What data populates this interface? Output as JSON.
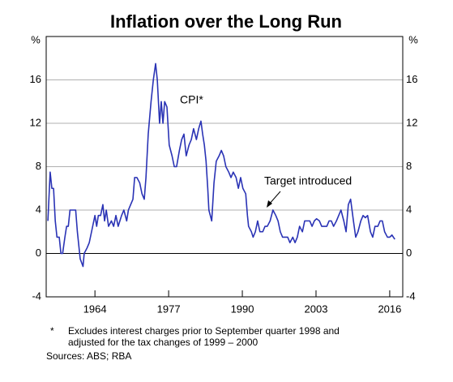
{
  "chart_data": {
    "type": "line",
    "title": "Inflation over the Long Run",
    "y_label": "%",
    "x": [
      1955.7,
      1956.1,
      1956.4,
      1956.7,
      1957.0,
      1957.3,
      1957.7,
      1958.0,
      1958.3,
      1958.7,
      1959.0,
      1959.3,
      1959.6,
      1960.1,
      1960.6,
      1960.9,
      1961.1,
      1961.4,
      1961.9,
      1962.1,
      1962.6,
      1963.0,
      1963.4,
      1964.0,
      1964.3,
      1964.6,
      1965.0,
      1965.4,
      1965.7,
      1966.0,
      1966.4,
      1966.9,
      1967.3,
      1967.7,
      1968.1,
      1968.4,
      1968.7,
      1969.1,
      1969.6,
      1969.9,
      1970.3,
      1970.7,
      1971.0,
      1971.4,
      1971.9,
      1972.3,
      1972.7,
      1973.0,
      1973.4,
      1973.9,
      1974.3,
      1974.7,
      1975.0,
      1975.4,
      1975.7,
      1976.0,
      1976.3,
      1976.7,
      1977.1,
      1977.6,
      1978.0,
      1978.4,
      1978.9,
      1979.3,
      1979.7,
      1980.1,
      1980.6,
      1981.0,
      1981.4,
      1981.9,
      1982.3,
      1982.7,
      1983.0,
      1983.3,
      1983.6,
      1983.9,
      1984.1,
      1984.6,
      1985.0,
      1985.4,
      1985.9,
      1986.3,
      1986.7,
      1987.1,
      1987.6,
      1988.0,
      1988.4,
      1988.9,
      1989.3,
      1989.7,
      1990.1,
      1990.6,
      1990.9,
      1991.1,
      1991.6,
      1991.9,
      1992.3,
      1992.7,
      1993.1,
      1993.6,
      1994.0,
      1994.4,
      1994.9,
      1995.4,
      1995.9,
      1996.3,
      1996.7,
      1997.1,
      1997.6,
      1998.0,
      1998.4,
      1998.9,
      1999.3,
      1999.7,
      2000.1,
      2000.6,
      2001.0,
      2001.4,
      2001.9,
      2002.3,
      2002.7,
      2003.1,
      2003.6,
      2004.0,
      2004.4,
      2004.9,
      2005.3,
      2005.7,
      2006.1,
      2006.6,
      2007.0,
      2007.4,
      2007.9,
      2008.3,
      2008.7,
      2009.1,
      2009.6,
      2010.0,
      2010.4,
      2010.9,
      2011.3,
      2011.7,
      2012.1,
      2012.6,
      2013.0,
      2013.4,
      2013.9,
      2014.3,
      2014.7,
      2015.1,
      2015.6,
      2016.0,
      2016.4,
      2016.9
    ],
    "series": [
      {
        "name": "CPI*",
        "color": "#2a33b5",
        "values": [
          3,
          7.5,
          6,
          6,
          3,
          1.5,
          1.5,
          0,
          0,
          1.5,
          2.5,
          2.5,
          4,
          4,
          4,
          2,
          1,
          -0.5,
          -1.2,
          0,
          0.5,
          1,
          2,
          3.5,
          2.5,
          3.5,
          3.5,
          4.5,
          3,
          4,
          2.5,
          3,
          2.5,
          3.5,
          2.5,
          3,
          3.5,
          4,
          3,
          4,
          4.5,
          5,
          7,
          7,
          6.5,
          5.5,
          5,
          7,
          11,
          14,
          16,
          17.5,
          16,
          12,
          14,
          12,
          14,
          13.5,
          10,
          9,
          8,
          8,
          9.5,
          10.5,
          11,
          9,
          10,
          10.5,
          11.5,
          10.5,
          11.5,
          12.2,
          11,
          10,
          8.5,
          6,
          4,
          3,
          6.5,
          8.5,
          9,
          9.5,
          9,
          8,
          7.5,
          7,
          7.5,
          7,
          6,
          7,
          6,
          5.5,
          3.5,
          2.5,
          2,
          1.5,
          2,
          3,
          2,
          2,
          2.5,
          2.5,
          3,
          4,
          3.5,
          3,
          2,
          1.5,
          1.5,
          1.5,
          1,
          1.5,
          1,
          1.5,
          2.5,
          2,
          3,
          3,
          3,
          2.5,
          3,
          3.2,
          3,
          2.5,
          2.5,
          2.5,
          3,
          3,
          2.5,
          3,
          3.5,
          4,
          3,
          2,
          4.5,
          5,
          3,
          1.5,
          2,
          3,
          3.5,
          3.3,
          3.5,
          2,
          1.5,
          2.5,
          2.5,
          3,
          3,
          2,
          1.5,
          1.5,
          1.7,
          1.3
        ]
      }
    ],
    "xlim": [
      1955.4,
      2018.3
    ],
    "xticks": [
      1964,
      1977,
      1990,
      2003,
      2016
    ],
    "ylim": [
      -4,
      20
    ],
    "yticks": [
      -4,
      0,
      4,
      8,
      12,
      16
    ],
    "grid": true,
    "annotations": [
      "CPI*",
      "Target introduced"
    ],
    "footnote_marker": "*",
    "footnote": [
      "Excludes interest charges prior to September quarter 1998 and",
      "adjusted for the tax changes of 1999 – 2000"
    ],
    "sources": "Sources:   ABS; RBA"
  }
}
